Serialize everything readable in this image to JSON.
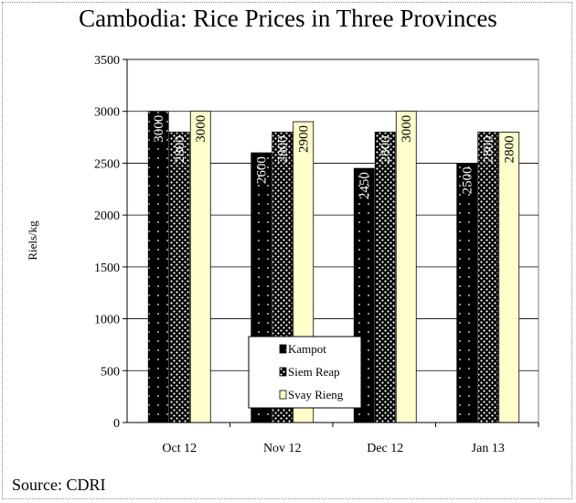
{
  "title": "Cambodia: Rice Prices in Three Provinces",
  "source": "Source: CDRI",
  "colors": {
    "kampot": "#000000",
    "siem_reap": "#141414",
    "svay_rieng": "#ffffcc",
    "grid": "#000000"
  },
  "chart_data": {
    "type": "bar",
    "title": "Cambodia: Rice Prices in Three Provinces",
    "xlabel": "",
    "ylabel": "Riels/kg",
    "ylim": [
      0,
      3500
    ],
    "yticks": [
      0,
      500,
      1000,
      1500,
      2000,
      2500,
      3000,
      3500
    ],
    "categories": [
      "Oct 12",
      "Nov 12",
      "Dec 12",
      "Jan 13"
    ],
    "series": [
      {
        "name": "Kampot",
        "values": [
          3000,
          2600,
          2450,
          2500
        ]
      },
      {
        "name": "Siem Reap",
        "values": [
          2800,
          2800,
          2800,
          2800
        ]
      },
      {
        "name": "Svay Rieng",
        "values": [
          3000,
          2900,
          3000,
          2800
        ]
      }
    ],
    "data_labels": true,
    "grid": true,
    "legend": "bottom-center inside plot"
  }
}
